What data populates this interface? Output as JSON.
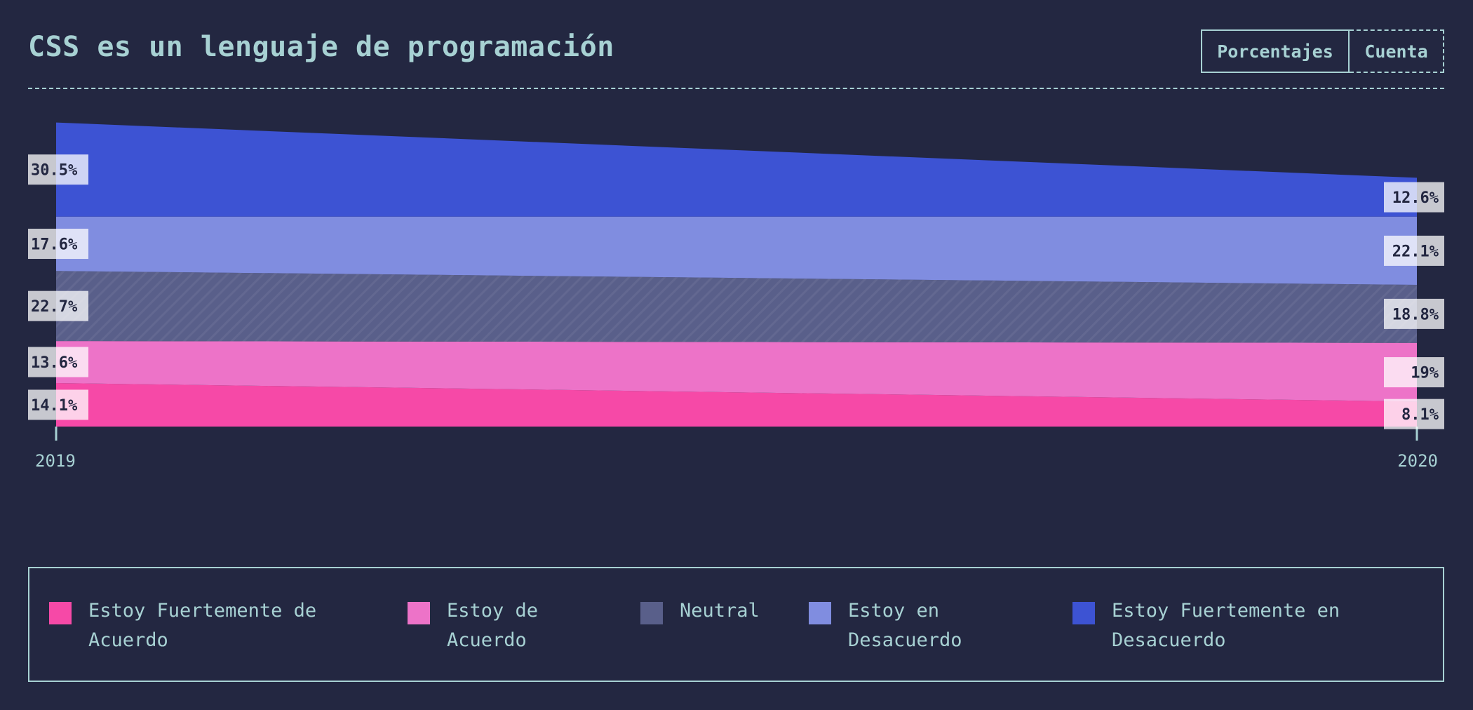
{
  "header": {
    "title": "CSS es un lenguaje de programación",
    "toggle": {
      "percent_label": "Porcentajes",
      "count_label": "Cuenta",
      "active": "percent"
    }
  },
  "chart_data": {
    "type": "area",
    "title": "CSS es un lenguaje de programación",
    "x": [
      "2019",
      "2020"
    ],
    "ylim": [
      0,
      100
    ],
    "stacked": true,
    "legend_position": "bottom",
    "series": [
      {
        "name": "Estoy Fuertemente de Acuerdo",
        "values": [
          14.1,
          8.1
        ],
        "labels": [
          "14.1%",
          "8.1%"
        ],
        "color": "#f649a7"
      },
      {
        "name": "Estoy de Acuerdo",
        "values": [
          13.6,
          19
        ],
        "labels": [
          "13.6%",
          "19%"
        ],
        "color": "#ed73c8"
      },
      {
        "name": "Neutral",
        "values": [
          22.7,
          18.8
        ],
        "labels": [
          "22.7%",
          "18.8%"
        ],
        "color": "#595f8a"
      },
      {
        "name": "Estoy en Desacuerdo",
        "values": [
          17.6,
          22.1
        ],
        "labels": [
          "17.6%",
          "22.1%"
        ],
        "color": "#808de0"
      },
      {
        "name": "Estoy Fuertemente en Desacuerdo",
        "values": [
          30.5,
          12.6
        ],
        "labels": [
          "30.5%",
          "12.6%"
        ],
        "color": "#3d53d3"
      }
    ]
  }
}
